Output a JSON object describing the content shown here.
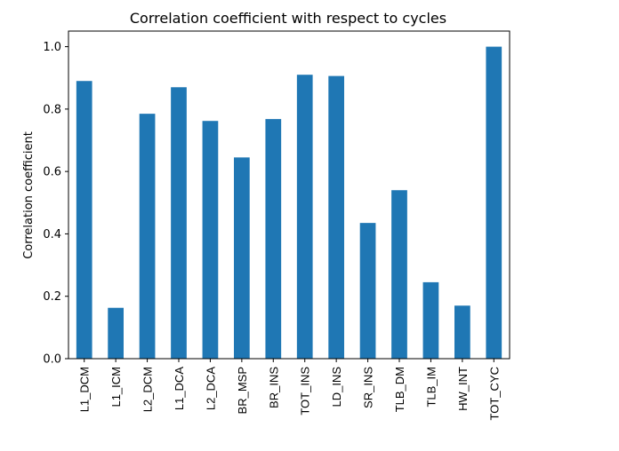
{
  "chart_data": {
    "type": "bar",
    "title": "Correlation coefficient with respect to cycles",
    "xlabel": "",
    "ylabel": "Correlation coefficient",
    "categories": [
      "L1_DCM",
      "L1_ICM",
      "L2_DCM",
      "L1_DCA",
      "L2_DCA",
      "BR_MSP",
      "BR_INS",
      "TOT_INS",
      "LD_INS",
      "SR_INS",
      "TLB_DM",
      "TLB_IM",
      "HW_INT",
      "TOT_CYC"
    ],
    "values": [
      0.89,
      0.163,
      0.785,
      0.87,
      0.762,
      0.645,
      0.768,
      0.91,
      0.906,
      0.435,
      0.54,
      0.245,
      0.17,
      1.0
    ],
    "ylim": [
      0.0,
      1.05
    ],
    "yticks": [
      "0.0",
      "0.2",
      "0.4",
      "0.6",
      "0.8",
      "1.0"
    ],
    "bar_color": "#1f77b4",
    "grid": false,
    "legend": "none"
  }
}
